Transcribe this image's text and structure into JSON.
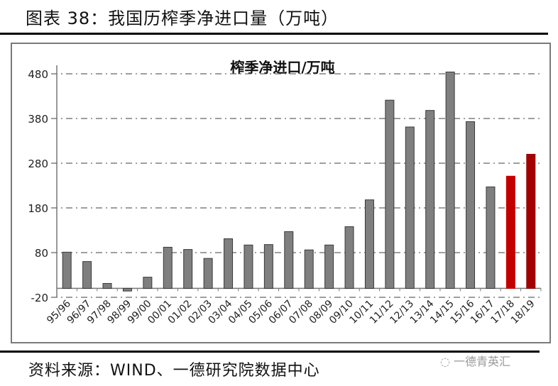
{
  "figure": {
    "title": "图表 38：我国历榨季净进口量（万吨）",
    "source": "资料来源：WIND、一德研究院数据中心",
    "watermark": "一德青英汇"
  },
  "chart_data": {
    "type": "bar",
    "title": "榨季净进口/万吨",
    "xlabel": "",
    "ylabel": "",
    "ylim": [
      -20,
      480
    ],
    "yticks": [
      -20,
      80,
      180,
      280,
      380,
      480
    ],
    "grid": true,
    "legend": null,
    "categories": [
      "95/96",
      "96/97",
      "97/98",
      "98/99",
      "99/00",
      "00/01",
      "01/02",
      "02/03",
      "03/04",
      "04/05",
      "05/06",
      "06/07",
      "07/08",
      "08/09",
      "09/10",
      "10/11",
      "11/12",
      "12/13",
      "13/14",
      "14/15",
      "15/16",
      "16/17",
      "17/18",
      "18/19"
    ],
    "values": [
      81,
      60,
      11,
      -6,
      25,
      92,
      87,
      67,
      111,
      97,
      98,
      127,
      86,
      97,
      138,
      198,
      421,
      361,
      398,
      484,
      373,
      227,
      251,
      300
    ],
    "colors": {
      "default": "#7f7f7f",
      "highlight": "#c00000",
      "highlight_dark": "#a50000"
    },
    "highlighted_categories": [
      "17/18",
      "18/19"
    ]
  }
}
